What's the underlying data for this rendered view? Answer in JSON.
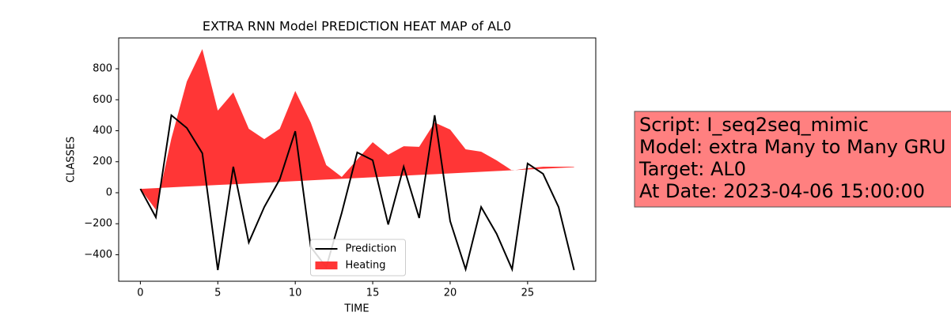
{
  "chart_data": {
    "type": "line-fill",
    "title": "EXTRA RNN Model PREDICTION HEAT MAP of AL0",
    "x_label": "TIME",
    "y_label": "CLASSES",
    "x": [
      0,
      1,
      2,
      3,
      4,
      5,
      6,
      7,
      8,
      9,
      10,
      11,
      12,
      13,
      14,
      15,
      16,
      17,
      18,
      19,
      20,
      21,
      22,
      23,
      24,
      25,
      26,
      27,
      28
    ],
    "series": [
      {
        "name": "Prediction",
        "color": "#000000",
        "values": [
          25,
          -158,
          500,
          418,
          255,
          -499,
          168,
          -321,
          -92,
          87,
          397,
          -350,
          -480,
          -130,
          260,
          210,
          -205,
          168,
          -163,
          500,
          -183,
          -494,
          -92,
          -265,
          -494,
          189,
          122,
          -92,
          -499
        ]
      },
      {
        "name": "Heating",
        "color": "#ff2020",
        "values": [
          25,
          -110,
          350,
          718,
          927,
          530,
          647,
          413,
          346,
          413,
          657,
          453,
          178,
          102,
          214,
          326,
          245,
          300,
          296,
          453,
          408,
          280,
          265,
          209,
          143,
          158,
          168,
          168,
          168
        ],
        "lower": [
          25,
          30,
          35,
          40,
          45,
          50,
          55,
          60,
          65,
          70,
          75,
          80,
          85,
          90,
          95,
          100,
          105,
          110,
          115,
          120,
          125,
          130,
          135,
          140,
          145,
          150,
          155,
          160,
          165
        ]
      }
    ],
    "xlim": [
      -1.4,
      29.4
    ],
    "xticks": [
      0,
      5,
      10,
      15,
      20,
      25
    ],
    "ylim": [
      -571,
      999
    ],
    "yticks": [
      {
        "value": -400,
        "label": "−400"
      },
      {
        "value": -200,
        "label": "−200"
      },
      0,
      200,
      400,
      600,
      800
    ],
    "legend": "lower center",
    "info_box": [
      "Script: I_seq2seq_mimic",
      "Model: extra Many to Many GRU",
      "Target: AL0",
      "At Date: 2023-04-06 15:00:00"
    ]
  }
}
